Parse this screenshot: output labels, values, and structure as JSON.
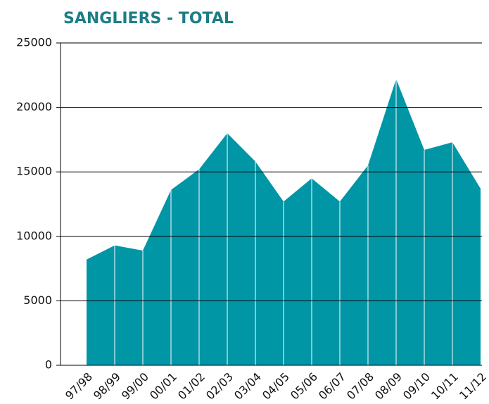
{
  "chart_data": {
    "type": "area",
    "title": "SANGLIERS - TOTAL",
    "categories": [
      "97/98",
      "98/99",
      "99/00",
      "00/01",
      "01/02",
      "02/03",
      "03/04",
      "04/05",
      "05/06",
      "06/07",
      "07/08",
      "08/09",
      "09/10",
      "10/11",
      "11/12"
    ],
    "values": [
      8200,
      9300,
      8900,
      13600,
      15200,
      18000,
      15800,
      12700,
      14500,
      12700,
      15500,
      22200,
      16700,
      17300,
      13700
    ],
    "color": "#0096a6",
    "ylim": [
      0,
      25000
    ],
    "yticks": [
      0,
      5000,
      10000,
      15000,
      20000,
      25000
    ],
    "grid": true
  }
}
